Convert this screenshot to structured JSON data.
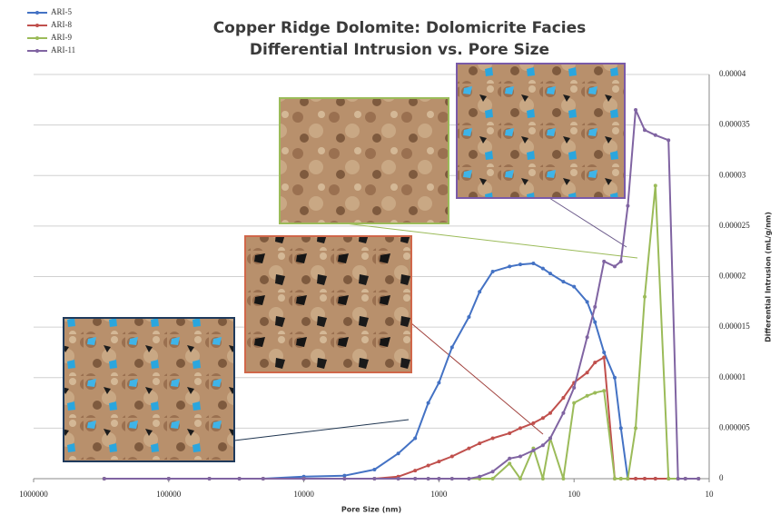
{
  "chart_data": {
    "type": "line",
    "title": "Copper Ridge Dolomite: Dolomicrite Facies",
    "subtitle": "Differential Intrusion vs. Pore Size",
    "x_label": "Pore Size (nm)",
    "y_label": "Differential Intrusion (mL/g/nm)",
    "x_scale": "log",
    "x": [
      300000,
      100000,
      50000,
      30000,
      20000,
      10000,
      5000,
      3000,
      2000,
      1500,
      1200,
      1000,
      800,
      600,
      500,
      400,
      300,
      250,
      200,
      170,
      150,
      120,
      100,
      80,
      70,
      60,
      50,
      45,
      40,
      35,
      30,
      25,
      20,
      17,
      15,
      12
    ],
    "series": [
      {
        "name": "ARI-5",
        "color": "#4472c4",
        "values": [
          0,
          0,
          0,
          0,
          0,
          2e-07,
          3e-07,
          9e-07,
          2.5e-06,
          4e-06,
          7.5e-06,
          9.5e-06,
          1.3e-05,
          1.6e-05,
          1.85e-05,
          2.05e-05,
          2.1e-05,
          2.12e-05,
          2.13e-05,
          2.08e-05,
          2.03e-05,
          1.95e-05,
          1.9e-05,
          1.75e-05,
          1.55e-05,
          1.25e-05,
          1e-05,
          5e-06,
          0,
          0,
          0,
          0,
          0,
          0,
          0,
          0
        ]
      },
      {
        "name": "ARI-8",
        "color": "#c0504d",
        "values": [
          0,
          0,
          0,
          0,
          0,
          0,
          0,
          0,
          2e-07,
          8e-07,
          1.3e-06,
          1.7e-06,
          2.2e-06,
          3e-06,
          3.5e-06,
          4e-06,
          4.5e-06,
          5e-06,
          5.5e-06,
          6e-06,
          6.5e-06,
          8e-06,
          9.5e-06,
          1.05e-05,
          1.15e-05,
          1.2e-05,
          0,
          0,
          0,
          0,
          0,
          0,
          0,
          0,
          0,
          0
        ]
      },
      {
        "name": "ARI-9",
        "color": "#9bbb59",
        "values": [
          0,
          0,
          0,
          0,
          0,
          0,
          0,
          0,
          0,
          0,
          0,
          0,
          0,
          0,
          0,
          0,
          1.5e-06,
          0,
          3e-06,
          0,
          4e-06,
          0,
          7.5e-06,
          8.2e-06,
          8.5e-06,
          8.7e-06,
          0,
          0,
          0,
          5e-06,
          1.8e-05,
          2.9e-05,
          0,
          0,
          0,
          0
        ]
      },
      {
        "name": "ARI-11",
        "color": "#8064a2",
        "values": [
          0,
          0,
          0,
          0,
          0,
          0,
          0,
          0,
          0,
          0,
          0,
          0,
          0,
          0,
          2e-07,
          7e-07,
          2e-06,
          2.2e-06,
          2.8e-06,
          3.3e-06,
          4e-06,
          6.5e-06,
          9e-06,
          1.4e-05,
          1.7e-05,
          2.15e-05,
          2.1e-05,
          2.15e-05,
          2.7e-05,
          3.65e-05,
          3.45e-05,
          3.4e-05,
          3.35e-05,
          0,
          0,
          0
        ]
      }
    ],
    "xlim": [
      1000000,
      10
    ],
    "xticks": [
      1000000,
      100000,
      10000,
      1000,
      100,
      10
    ],
    "ylim": [
      0,
      4e-05
    ],
    "yticks": [
      0,
      5e-06,
      1e-05,
      1.5e-05,
      2e-05,
      2.5e-05,
      3e-05,
      3.5e-05,
      4e-05
    ],
    "grid": true,
    "legend": "top-left"
  }
}
